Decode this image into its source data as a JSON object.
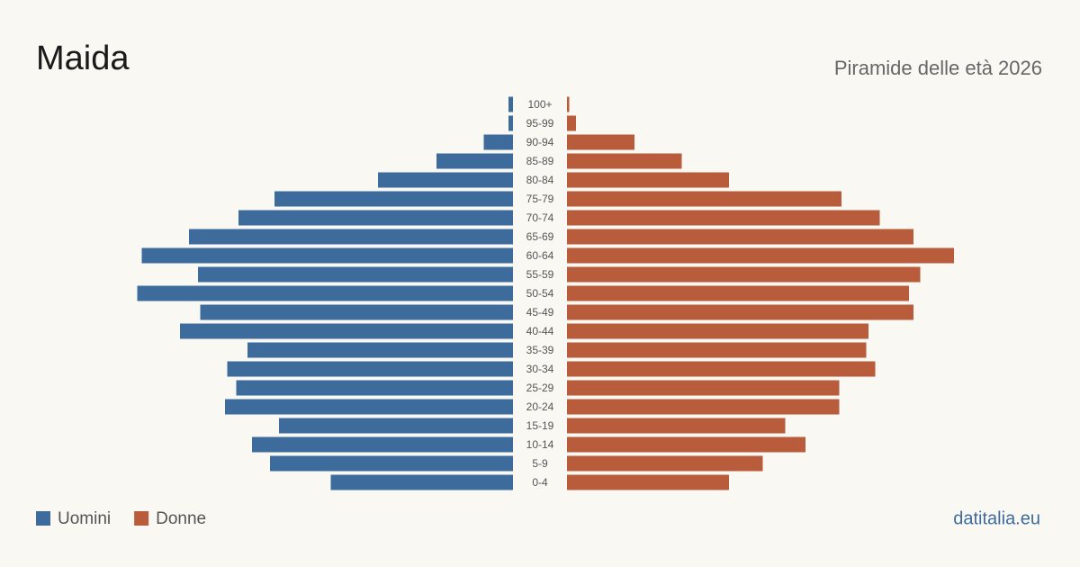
{
  "chart_data": {
    "type": "pyramid",
    "title": "Maida",
    "subtitle": "Piramide delle età 2026",
    "footer": "datitalia.eu",
    "categories": [
      "100+",
      "95-99",
      "90-94",
      "85-89",
      "80-84",
      "75-79",
      "70-74",
      "65-69",
      "60-64",
      "55-59",
      "50-54",
      "45-49",
      "40-44",
      "35-39",
      "30-34",
      "25-29",
      "20-24",
      "15-19",
      "10-14",
      "5-9",
      "0-4"
    ],
    "series": [
      {
        "name": "Uomini",
        "color": "#3d6b9c",
        "values": [
          2,
          2,
          13,
          34,
          60,
          106,
          122,
          144,
          165,
          140,
          167,
          139,
          148,
          118,
          127,
          123,
          128,
          104,
          116,
          108,
          81
        ]
      },
      {
        "name": "Donne",
        "color": "#b85c3c",
        "values": [
          1,
          4,
          30,
          51,
          72,
          122,
          139,
          154,
          172,
          157,
          152,
          154,
          134,
          133,
          137,
          121,
          121,
          97,
          106,
          87,
          72
        ]
      }
    ]
  }
}
